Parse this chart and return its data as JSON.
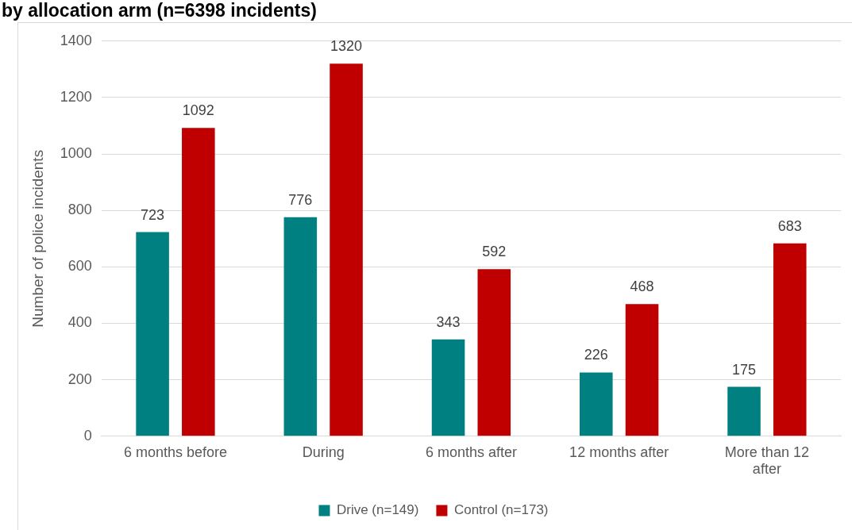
{
  "chart_data": {
    "type": "bar",
    "title": "by allocation arm (n=6398 incidents)",
    "ylabel": "Number of police incidents",
    "categories": [
      [
        "6 months before"
      ],
      [
        "During"
      ],
      [
        "6 months after"
      ],
      [
        "12 months after"
      ],
      [
        "More than 12",
        "after"
      ]
    ],
    "series": [
      {
        "name": "Drive (n=149)",
        "color": "#008080",
        "values": [
          723,
          776,
          343,
          226,
          175
        ]
      },
      {
        "name": "Control (n=173)",
        "color": "#c00000",
        "values": [
          1092,
          1320,
          592,
          468,
          683
        ]
      }
    ],
    "ylim": [
      0,
      1400
    ],
    "yticks": [
      0,
      200,
      400,
      600,
      800,
      1000,
      1200,
      1400
    ],
    "grid": "y",
    "legend": "bottom",
    "data_labels": true
  }
}
